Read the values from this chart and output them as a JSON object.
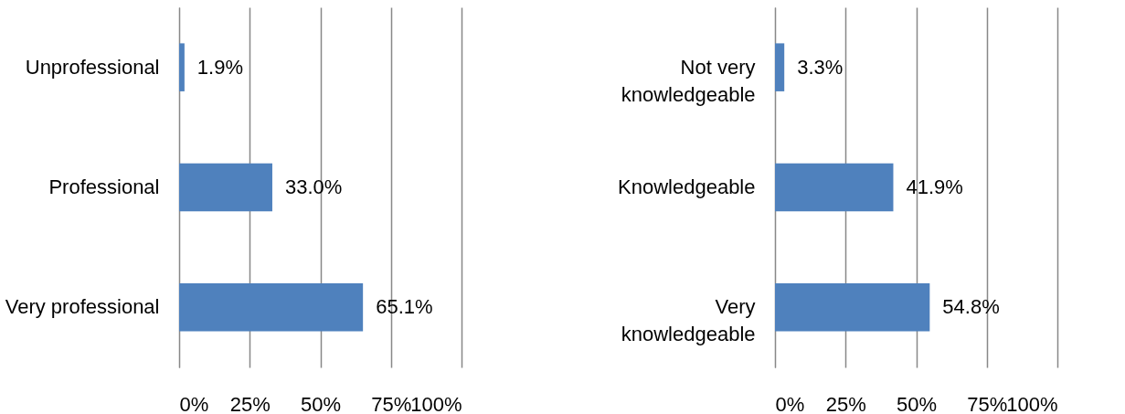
{
  "chart_data": [
    {
      "type": "bar",
      "orientation": "horizontal",
      "categories": [
        "Unprofessional",
        "Professional",
        "Very professional"
      ],
      "values": [
        1.9,
        33.0,
        65.1
      ],
      "value_labels": [
        "1.9%",
        "33.0%",
        "65.1%"
      ],
      "color": "#4f81bd",
      "xlim": [
        0,
        100
      ],
      "xticks": [
        {
          "value": 0,
          "label": "0%"
        },
        {
          "value": 25,
          "label": "25%"
        },
        {
          "value": 50,
          "label": "50%"
        },
        {
          "value": 75,
          "label": "75%"
        },
        {
          "value": 100,
          "label": "100%"
        }
      ],
      "grid": "x"
    },
    {
      "type": "bar",
      "orientation": "horizontal",
      "categories": [
        "Not very knowledgeable",
        "Knowledgeable",
        "Very knowledgeable"
      ],
      "values": [
        3.3,
        41.9,
        54.8
      ],
      "value_labels": [
        "3.3%",
        "41.9%",
        "54.8%"
      ],
      "color": "#4f81bd",
      "xlim": [
        0,
        100
      ],
      "xticks": [
        {
          "value": 0,
          "label": "0%"
        },
        {
          "value": 25,
          "label": "25%"
        },
        {
          "value": 50,
          "label": "50%"
        },
        {
          "value": 75,
          "label": "75%"
        },
        {
          "value": 100,
          "label": "100%"
        }
      ],
      "grid": "x"
    }
  ]
}
